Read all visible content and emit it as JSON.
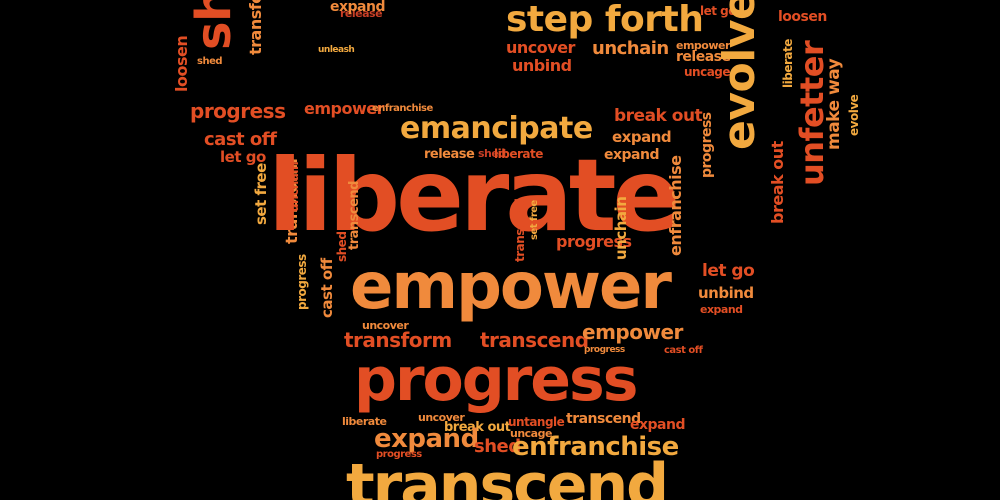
{
  "words": {
    "liberate": "liberate",
    "empower": "empower",
    "progress": "progress",
    "transcend": "transcend",
    "emancipate": "emancipate",
    "step_forth": "step forth",
    "evolve": "evolve",
    "unfetter": "unfetter",
    "make_way": "make way",
    "break_out": "break out",
    "expand": "expand",
    "release": "release",
    "shed": "shed",
    "unchain": "unchain",
    "unbind": "unbind",
    "uncover": "uncover",
    "uncage": "uncage",
    "loosen": "loosen",
    "let_go": "let go",
    "set_free": "set free",
    "cast_off": "cast off",
    "transform": "transform",
    "enfranchise": "enfranchise",
    "untangle": "untangle",
    "unleash": "unleash"
  },
  "palette": {
    "background": "#000000",
    "red_orange": "#e24e24",
    "orange": "#f08a3c",
    "gold": "#f2a93f",
    "deep_red": "#c93f26"
  }
}
